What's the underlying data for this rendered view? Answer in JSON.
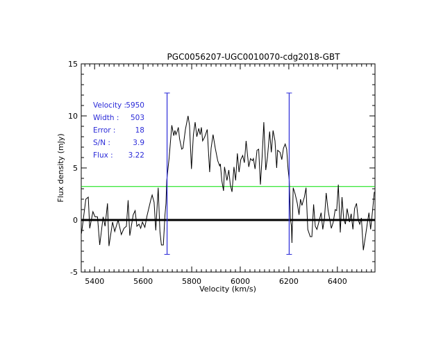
{
  "chart_data": {
    "type": "line",
    "title": "PGC0056207-UGC0010070-cdg2018-GBT",
    "xlabel": "Velocity (km/s)",
    "ylabel": "Flux density (mJy)",
    "xlim": [
      5345,
      6555
    ],
    "ylim": [
      -5,
      15
    ],
    "xticks": [
      5400,
      5600,
      5800,
      6000,
      6200,
      6400
    ],
    "yticks": [
      -5,
      0,
      5,
      10,
      15
    ],
    "grid": false,
    "colors": {
      "spectrum": "#000000",
      "markers": "#2a2ad8",
      "flux_level": "#00e000",
      "zero_line": "#000000",
      "stats_text": "#2a2ad8"
    },
    "stats": [
      {
        "label": "Velocity :",
        "value": "5950"
      },
      {
        "label": "Width :",
        "value": "503"
      },
      {
        "label": "Error :",
        "value": "18"
      },
      {
        "label": "S/N :",
        "value": "3.9"
      },
      {
        "label": "Flux :",
        "value": "3.22"
      }
    ],
    "flux_level": 3.22,
    "zero_line": 0,
    "markers": {
      "velocities": [
        5698.5,
        6201.5
      ],
      "ymin": -3.3,
      "ymax": 12.2
    },
    "series": [
      {
        "x": [
          5346,
          5350,
          5364,
          5374,
          5380,
          5393,
          5402,
          5412,
          5421,
          5435,
          5443,
          5453,
          5459,
          5474,
          5483,
          5497,
          5510,
          5521,
          5531,
          5538,
          5545,
          5559,
          5567,
          5574,
          5583,
          5590,
          5597,
          5607,
          5616,
          5631,
          5637,
          5645,
          5652,
          5662,
          5669,
          5675,
          5683,
          5690,
          5694,
          5697,
          5707,
          5718,
          5726,
          5731,
          5735,
          5740,
          5745,
          5750,
          5759,
          5764,
          5774,
          5785,
          5791,
          5799,
          5807,
          5814,
          5821,
          5829,
          5835,
          5840,
          5845,
          5854,
          5864,
          5874,
          5880,
          5888,
          5897,
          5907,
          5915,
          5918,
          5924,
          5931,
          5935,
          5945,
          5953,
          5959,
          5966,
          5974,
          5981,
          5988,
          5995,
          6002,
          6010,
          6017,
          6024,
          6031,
          6035,
          6042,
          6050,
          6054,
          6061,
          6069,
          6076,
          6083,
          6090,
          6097,
          6105,
          6112,
          6121,
          6128,
          6135,
          6143,
          6150,
          6154,
          6164,
          6171,
          6178,
          6185,
          6191,
          6197,
          6202,
          6207,
          6211,
          6213,
          6218,
          6226,
          6235,
          6242,
          6248,
          6254,
          6259,
          6264,
          6271,
          6278,
          6288,
          6295,
          6302,
          6309,
          6316,
          6326,
          6333,
          6340,
          6347,
          6354,
          6362,
          6369,
          6375,
          6383,
          6391,
          6397,
          6404,
          6412,
          6419,
          6426,
          6433,
          6440,
          6450,
          6457,
          6464,
          6471,
          6479,
          6486,
          6492,
          6499,
          6507,
          6516,
          6524,
          6530,
          6537,
          6545,
          6552
        ],
        "y": [
          -1.3,
          -0.6,
          2.0,
          2.2,
          -0.8,
          0.8,
          0.3,
          0.3,
          -2.4,
          0.3,
          -0.6,
          1.6,
          -2.5,
          -0.2,
          -1.1,
          0.0,
          -1.4,
          -0.8,
          -0.6,
          1.9,
          -1.5,
          0.5,
          0.9,
          -0.6,
          -0.4,
          -0.8,
          -0.2,
          -0.7,
          0.4,
          1.9,
          2.4,
          1.7,
          -1.0,
          3.1,
          -1.1,
          -2.4,
          -2.4,
          0.5,
          1.6,
          3.8,
          6.0,
          9.1,
          8.1,
          8.6,
          8.2,
          8.5,
          8.9,
          7.8,
          6.8,
          6.9,
          8.7,
          10.0,
          9.1,
          4.9,
          8.2,
          9.4,
          8.0,
          8.8,
          8.2,
          8.9,
          7.6,
          8.0,
          8.7,
          4.6,
          6.9,
          8.2,
          6.9,
          5.7,
          5.2,
          5.4,
          3.8,
          2.8,
          5.1,
          3.8,
          4.8,
          3.4,
          2.7,
          5.1,
          3.8,
          6.4,
          4.6,
          5.8,
          6.2,
          5.5,
          7.6,
          6.0,
          5.1,
          5.9,
          5.7,
          5.9,
          4.9,
          6.7,
          6.8,
          3.4,
          6.0,
          9.4,
          4.8,
          6.0,
          8.5,
          6.5,
          8.6,
          7.6,
          5.0,
          6.7,
          6.5,
          5.8,
          6.9,
          7.3,
          6.8,
          4.9,
          3.8,
          0.0,
          -0.6,
          -2.2,
          3.1,
          2.5,
          1.6,
          0.5,
          2.0,
          1.4,
          1.8,
          2.2,
          3.1,
          -0.9,
          -1.6,
          -1.6,
          1.5,
          -0.6,
          -0.9,
          0.0,
          0.7,
          -0.9,
          0.2,
          2.6,
          0.9,
          0.0,
          -0.8,
          -0.2,
          1.0,
          0.9,
          3.4,
          -1.2,
          2.2,
          0.1,
          -0.4,
          1.1,
          -0.2,
          0.6,
          -0.9,
          1.1,
          1.6,
          0.0,
          -0.4,
          0.2,
          -2.9,
          -1.5,
          -0.2,
          0.7,
          -0.9,
          0.9,
          2.7
        ]
      }
    ]
  }
}
